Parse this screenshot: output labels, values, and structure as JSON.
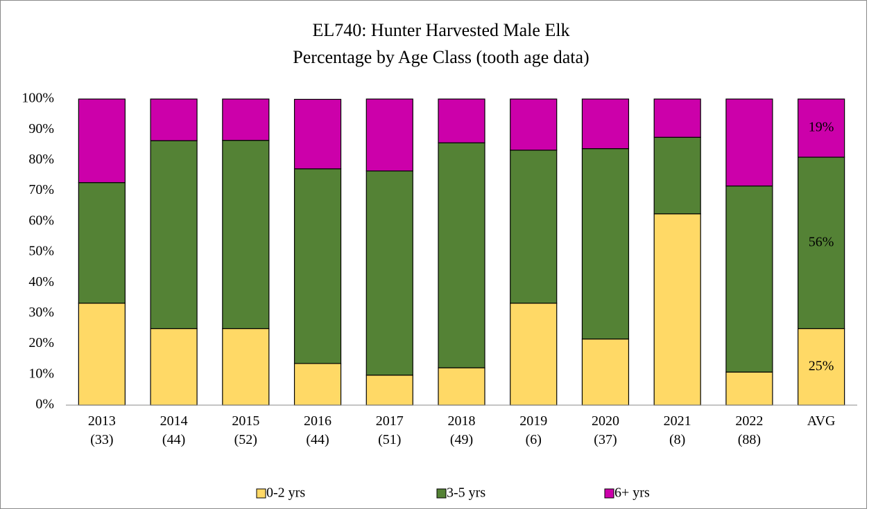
{
  "chart_data": {
    "type": "stacked_bar",
    "title": "EL740: Hunter Harvested Male Elk",
    "subtitle": "Percentage by Age Class (tooth age data)",
    "categories": [
      "2013\n(33)",
      "2014\n(44)",
      "2015\n(52)",
      "2016\n(44)",
      "2017\n(51)",
      "2018\n(49)",
      "2019\n(6)",
      "2020\n(37)",
      "2021\n(8)",
      "2022\n(88)",
      "AVG"
    ],
    "series": [
      {
        "name": "0-2 yrs",
        "color": "#FFD966",
        "values": [
          33.3,
          25,
          25,
          13.6,
          9.8,
          12.2,
          33.3,
          21.6,
          62.5,
          10.8,
          25
        ],
        "value_labels": [
          null,
          null,
          null,
          null,
          null,
          null,
          null,
          null,
          null,
          null,
          "25%"
        ]
      },
      {
        "name": "3-5 yrs",
        "color": "#548235",
        "values": [
          39.4,
          61.4,
          61.5,
          63.6,
          66.7,
          73.5,
          50,
          62.2,
          25,
          60.8,
          56
        ],
        "value_labels": [
          null,
          null,
          null,
          null,
          null,
          null,
          null,
          null,
          null,
          null,
          "56%"
        ]
      },
      {
        "name": "6+ yrs",
        "color": "#CC00AA",
        "values": [
          27.3,
          13.6,
          13.5,
          22.7,
          23.5,
          14.3,
          16.7,
          16.2,
          12.5,
          28.4,
          19
        ],
        "value_labels": [
          null,
          null,
          null,
          null,
          null,
          null,
          null,
          null,
          null,
          null,
          "19%"
        ]
      }
    ],
    "ylim": [
      0,
      100
    ],
    "yticks": [
      {
        "value": 0,
        "label": "0%"
      },
      {
        "value": 10,
        "label": "10%"
      },
      {
        "value": 20,
        "label": "20%"
      },
      {
        "value": 30,
        "label": "30%"
      },
      {
        "value": 40,
        "label": "40%"
      },
      {
        "value": 50,
        "label": "50%"
      },
      {
        "value": 60,
        "label": "60%"
      },
      {
        "value": 70,
        "label": "70%"
      },
      {
        "value": 80,
        "label": "80%"
      },
      {
        "value": 90,
        "label": "90%"
      },
      {
        "value": 100,
        "label": "100%"
      }
    ],
    "grid": false,
    "legend": "bottom"
  }
}
